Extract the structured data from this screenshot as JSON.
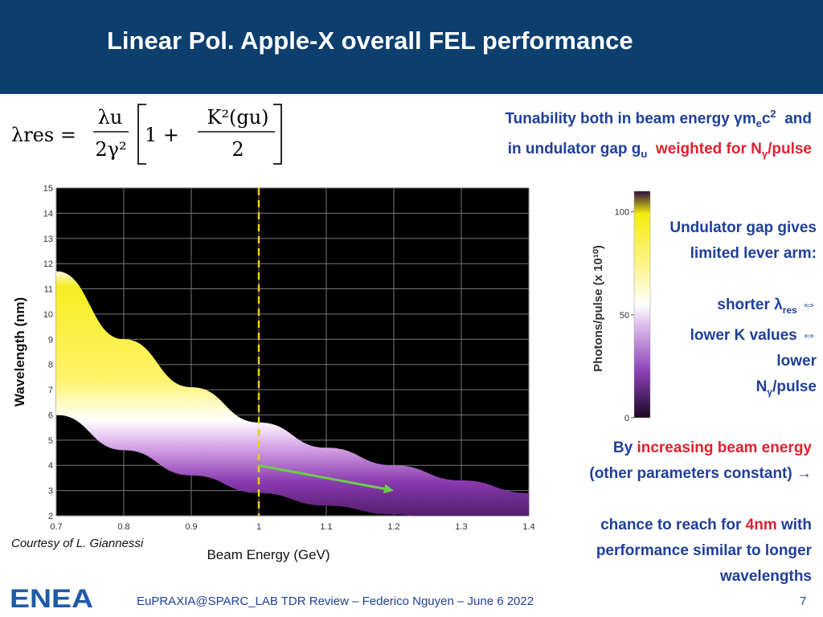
{
  "slide": {
    "title": "Linear Pol. Apple-X overall FEL performance",
    "courtesy": "Courtesy of L. Giannessi",
    "footer": "EuPRAXIA@SPARC_LAB TDR Review – Federico Nguyen – June 6  2022",
    "page_number": "7",
    "logo_text": "ENEA"
  },
  "formula": {
    "lhs": "λres =",
    "frac1_num": "λu",
    "frac1_den": "2γ²",
    "bracket_one": "1 +",
    "frac2_num": "K²(gu)",
    "frac2_den": "2"
  },
  "tunability": {
    "line1_a": "Tunability both in beam energy ",
    "line1_sym": "γm",
    "line1_sub": "e",
    "line1_c": "c",
    "line1_sup": "2",
    "line1_b": "  and",
    "line2_a": "in undulator gap g",
    "line2_sub": "u",
    "line2_red": "  weighted for N",
    "line2_red_sub": "γ",
    "line2_red_end": "/pulse"
  },
  "gap_text": {
    "line1": "Undulator gap gives",
    "line2": "limited lever arm:",
    "shorter": "shorter λ",
    "shorter_sub": "res",
    "arrows": "⇔",
    "lowerK": "lower K values",
    "lower": "lower",
    "npulse": "N",
    "npulse_sub": "γ",
    "npulse_end": "/pulse"
  },
  "energy_text": {
    "by": "By ",
    "increasing": "increasing beam energy",
    "constant": "(other parameters constant)",
    "arrow": "→",
    "chance_a": "chance to reach for ",
    "chance_red": "4nm",
    "chance_b": " with",
    "perf": "performance similar to longer",
    "wavelengths": "wavelengths"
  },
  "colors": {
    "header_bg": "#0c3e6e",
    "text_blue": "#1f3f9a",
    "text_red": "#e02030",
    "plot_bg": "#000000",
    "dashed_line": "#e8d000",
    "arrow": "#6ad04a"
  },
  "colorbar": {
    "label": "Photons/pulse (x 10¹⁰)",
    "ticks": [
      "100",
      "50",
      "0"
    ],
    "tick_values": [
      100,
      50,
      0
    ],
    "max": 110
  },
  "chart_data": {
    "type": "heatmap",
    "xlabel": "Beam Energy (GeV)",
    "ylabel": "Wavelength (nm)",
    "xlim": [
      0.7,
      1.4
    ],
    "ylim": [
      2,
      15
    ],
    "xticks": [
      "0.7",
      "0.8",
      "0.9",
      "1",
      "1.1",
      "1.2",
      "1.3",
      "1.4"
    ],
    "xtick_values": [
      0.7,
      0.8,
      0.9,
      1.0,
      1.1,
      1.2,
      1.3,
      1.4
    ],
    "yticks": [
      "2",
      "3",
      "4",
      "5",
      "6",
      "7",
      "8",
      "9",
      "10",
      "11",
      "12",
      "13",
      "14",
      "15"
    ],
    "ytick_values": [
      2,
      3,
      4,
      5,
      6,
      7,
      8,
      9,
      10,
      11,
      12,
      13,
      14,
      15
    ],
    "grid": true,
    "band_upper": {
      "x": [
        0.7,
        0.8,
        0.9,
        1.0,
        1.1,
        1.2,
        1.3,
        1.4
      ],
      "y": [
        11.7,
        9.0,
        7.1,
        5.7,
        4.7,
        4.0,
        3.4,
        2.9
      ]
    },
    "band_lower": {
      "x": [
        0.7,
        0.8,
        0.9,
        1.0,
        1.1,
        1.2,
        1.3,
        1.4
      ],
      "y": [
        6.0,
        4.6,
        3.6,
        2.9,
        2.4,
        2.05,
        1.75,
        1.5
      ]
    },
    "vline_x": 1.0,
    "arrow": {
      "from": [
        1.0,
        4.0
      ],
      "to": [
        1.2,
        3.0
      ]
    }
  }
}
